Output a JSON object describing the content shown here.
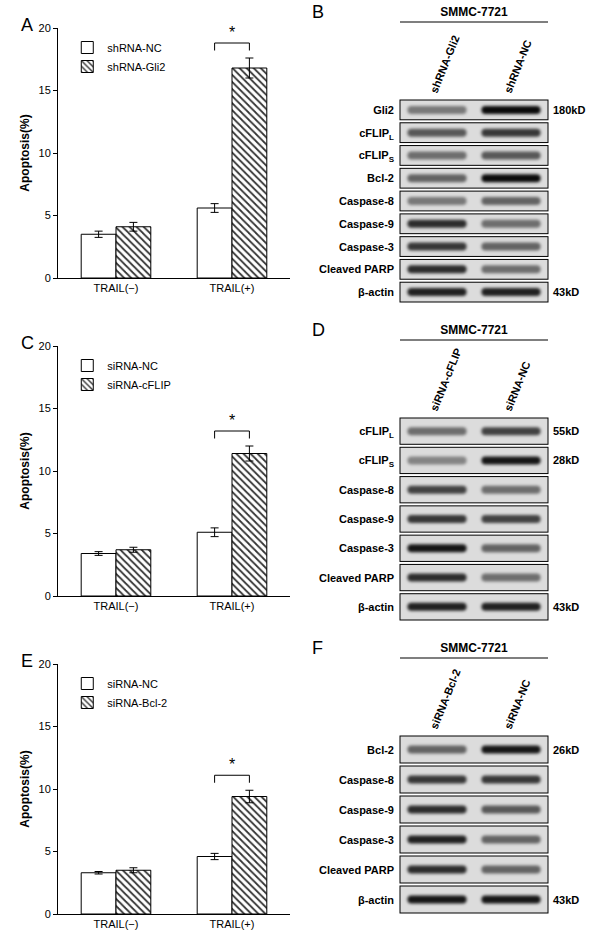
{
  "chart_data": [
    {
      "type": "bar",
      "panel": "A",
      "y_label": "Apoptosis(%)",
      "categories": [
        "TRAIL(−)",
        "TRAIL(+)"
      ],
      "series": [
        {
          "name": "shRNA-NC",
          "color": "#ffffff",
          "values": [
            3.5,
            5.6
          ],
          "errors": [
            0.25,
            0.35
          ]
        },
        {
          "name": "shRNA-Gli2",
          "color": "#333333",
          "values": [
            4.1,
            16.8
          ],
          "errors": [
            0.35,
            0.8
          ]
        }
      ],
      "ylim": [
        0,
        20
      ],
      "yticks": [
        0,
        5,
        10,
        15,
        20
      ],
      "grid": false,
      "legend": "top left",
      "annotations": [
        {
          "text": "*",
          "category": "TRAIL(+)"
        }
      ]
    },
    {
      "type": "bar",
      "panel": "C",
      "y_label": "Apoptosis(%)",
      "categories": [
        "TRAIL(−)",
        "TRAIL(+)"
      ],
      "series": [
        {
          "name": "siRNA-NC",
          "color": "#ffffff",
          "values": [
            3.4,
            5.1
          ],
          "errors": [
            0.15,
            0.35
          ]
        },
        {
          "name": "siRNA-cFLIP",
          "color": "#333333",
          "values": [
            3.7,
            11.4
          ],
          "errors": [
            0.2,
            0.6
          ]
        }
      ],
      "ylim": [
        0,
        20
      ],
      "yticks": [
        0,
        5,
        10,
        15,
        20
      ],
      "grid": false,
      "legend": "top left",
      "annotations": [
        {
          "text": "*",
          "category": "TRAIL(+)"
        }
      ]
    },
    {
      "type": "bar",
      "panel": "E",
      "y_label": "Apoptosis(%)",
      "categories": [
        "TRAIL(−)",
        "TRAIL(+)"
      ],
      "series": [
        {
          "name": "siRNA-NC",
          "color": "#ffffff",
          "values": [
            3.3,
            4.6
          ],
          "errors": [
            0.1,
            0.25
          ]
        },
        {
          "name": "siRNA-Bcl-2",
          "color": "#333333",
          "values": [
            3.5,
            9.4
          ],
          "errors": [
            0.2,
            0.5
          ]
        }
      ],
      "ylim": [
        0,
        20
      ],
      "yticks": [
        0,
        5,
        10,
        15,
        20
      ],
      "grid": false,
      "legend": "top left",
      "annotations": [
        {
          "text": "*",
          "category": "TRAIL(+)"
        }
      ]
    }
  ],
  "blots": [
    {
      "panel": "B",
      "cell_line": "SMMC-7721",
      "lanes": [
        "shRNA-Gli2",
        "shRNA-NC"
      ],
      "rows": [
        {
          "label": "Gli2",
          "kd": "180kD",
          "intensity": [
            0.45,
            0.95
          ]
        },
        {
          "label": "cFLIP",
          "sub": "L",
          "intensity": [
            0.6,
            0.75
          ]
        },
        {
          "label": "cFLIP",
          "sub": "S",
          "intensity": [
            0.5,
            0.6
          ]
        },
        {
          "label": "Bcl-2",
          "intensity": [
            0.55,
            0.95
          ]
        },
        {
          "label": "Caspase-8",
          "intensity": [
            0.45,
            0.55
          ]
        },
        {
          "label": "Caspase-9",
          "intensity": [
            0.8,
            0.5
          ]
        },
        {
          "label": "Caspase-3",
          "intensity": [
            0.75,
            0.55
          ]
        },
        {
          "label": "Cleaved PARP",
          "intensity": [
            0.8,
            0.5
          ]
        },
        {
          "label": "β-actin",
          "kd": "43kD",
          "intensity": [
            0.85,
            0.85
          ]
        }
      ]
    },
    {
      "panel": "D",
      "cell_line": "SMMC-7721",
      "lanes": [
        "siRNA-cFLIP",
        "siRNA-NC"
      ],
      "rows": [
        {
          "label": "cFLIP",
          "sub": "L",
          "kd": "55kD",
          "intensity": [
            0.5,
            0.7
          ]
        },
        {
          "label": "cFLIP",
          "sub": "S",
          "kd": "28kD",
          "intensity": [
            0.4,
            0.9
          ]
        },
        {
          "label": "Caspase-8",
          "intensity": [
            0.7,
            0.5
          ]
        },
        {
          "label": "Caspase-9",
          "intensity": [
            0.75,
            0.7
          ]
        },
        {
          "label": "Caspase-3",
          "intensity": [
            0.9,
            0.55
          ]
        },
        {
          "label": "Cleaved PARP",
          "intensity": [
            0.8,
            0.5
          ]
        },
        {
          "label": "β-actin",
          "kd": "43kD",
          "intensity": [
            0.85,
            0.85
          ]
        }
      ]
    },
    {
      "panel": "F",
      "cell_line": "SMMC-7721",
      "lanes": [
        "siRNA-Bcl-2",
        "siRNA-NC"
      ],
      "rows": [
        {
          "label": "Bcl-2",
          "kd": "26kD",
          "intensity": [
            0.55,
            0.9
          ]
        },
        {
          "label": "Caspase-8",
          "intensity": [
            0.75,
            0.75
          ]
        },
        {
          "label": "Caspase-9",
          "intensity": [
            0.8,
            0.6
          ]
        },
        {
          "label": "Caspase-3",
          "intensity": [
            0.85,
            0.55
          ]
        },
        {
          "label": "Cleaved PARP",
          "intensity": [
            0.8,
            0.55
          ]
        },
        {
          "label": "β-actin",
          "kd": "43kD",
          "intensity": [
            0.9,
            0.9
          ]
        }
      ]
    }
  ]
}
